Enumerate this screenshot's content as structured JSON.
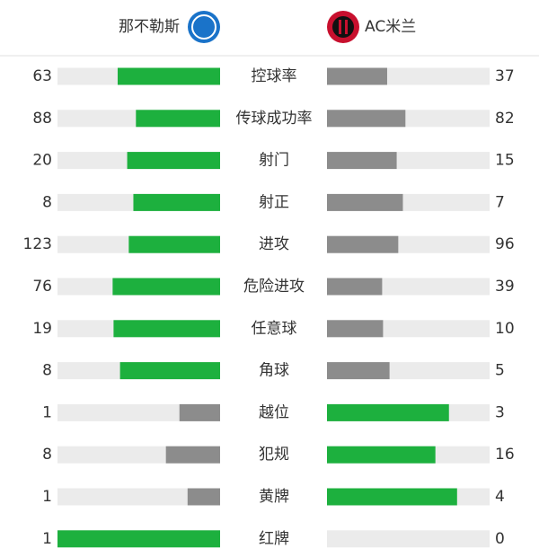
{
  "header": {
    "home_team": "那不勒斯",
    "away_team": "AC米兰"
  },
  "colors": {
    "leading": "#1db03e",
    "trailing": "#8c8c8c",
    "track": "#ebebeb"
  },
  "stats": [
    {
      "label": "控球率",
      "home": 63,
      "away": 37
    },
    {
      "label": "传球成功率",
      "home": 88,
      "away": 82
    },
    {
      "label": "射门",
      "home": 20,
      "away": 15
    },
    {
      "label": "射正",
      "home": 8,
      "away": 7
    },
    {
      "label": "进攻",
      "home": 123,
      "away": 96
    },
    {
      "label": "危险进攻",
      "home": 76,
      "away": 39
    },
    {
      "label": "任意球",
      "home": 19,
      "away": 10
    },
    {
      "label": "角球",
      "home": 8,
      "away": 5
    },
    {
      "label": "越位",
      "home": 1,
      "away": 3
    },
    {
      "label": "犯规",
      "home": 8,
      "away": 16
    },
    {
      "label": "黄牌",
      "home": 1,
      "away": 4
    },
    {
      "label": "红牌",
      "home": 1,
      "away": 0
    }
  ]
}
